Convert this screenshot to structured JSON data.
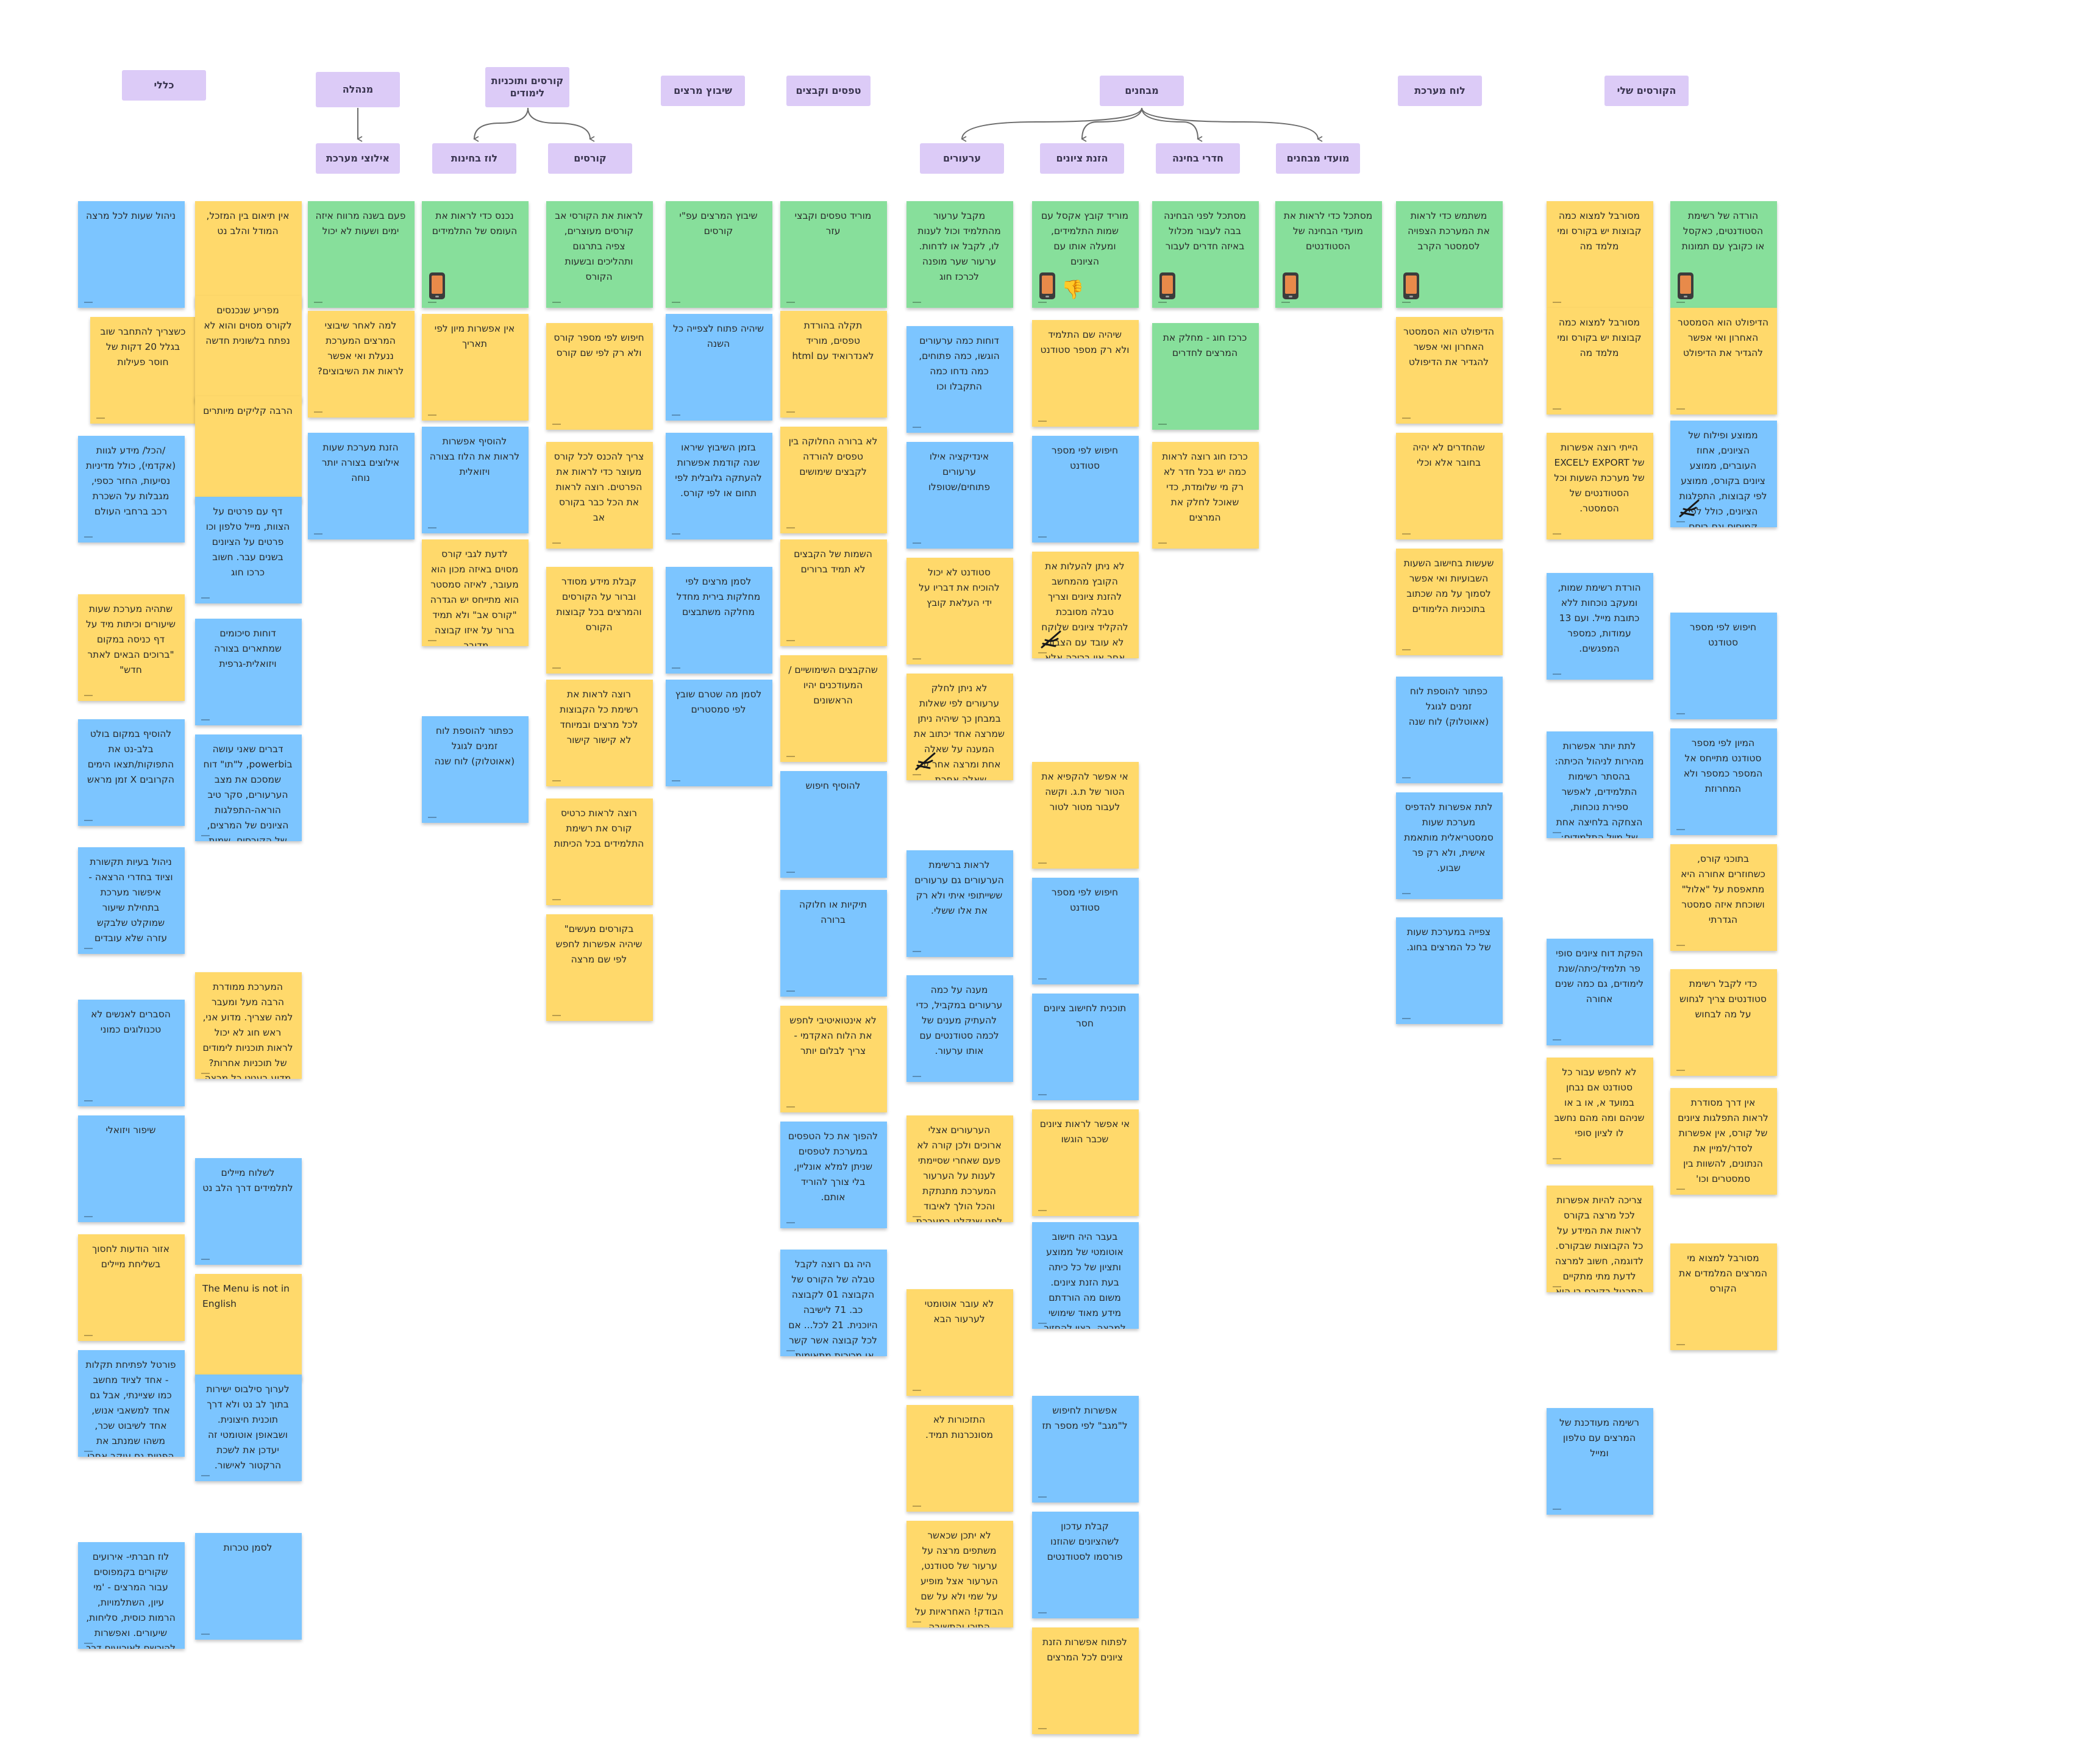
{
  "colors": {
    "header": "#dccbf7",
    "yellow": "#ffd96b",
    "blue": "#7cc5ff",
    "green": "#87df9b",
    "connector": "#6b6b6b"
  },
  "icons": {
    "phone": "phone-mockup-icon",
    "thumbsdown": "thumbs-down-icon",
    "pen": "pen-scribble-icon"
  },
  "headers": [
    {
      "id": "h_general",
      "text": "כללי"
    },
    {
      "id": "h_admin",
      "text": "מנהלה"
    },
    {
      "id": "h_admin_sub",
      "text": "אילוצי מערכת"
    },
    {
      "id": "h_courses_prog",
      "text": "קורסים ותוכניות לימודים"
    },
    {
      "id": "h_exams_sched",
      "text": "לוז בחינות"
    },
    {
      "id": "h_courses",
      "text": "קורסים"
    },
    {
      "id": "h_staff",
      "text": "שיבוץ מרצים"
    },
    {
      "id": "h_forms",
      "text": "טפסים וקבצים"
    },
    {
      "id": "h_exams",
      "text": "מבחנים"
    },
    {
      "id": "h_appeals",
      "text": "ערעורים"
    },
    {
      "id": "h_grades",
      "text": "הזנת ציונים"
    },
    {
      "id": "h_rooms",
      "text": "חדרי בחינה"
    },
    {
      "id": "h_dates",
      "text": "מועדי מבחנים"
    },
    {
      "id": "h_board",
      "text": "לוח מערכת"
    },
    {
      "id": "h_mycourses",
      "text": "הקורסים שלי"
    }
  ],
  "notes": [
    {
      "text": "ניהול שעות לכל מרצה",
      "color": "blue"
    },
    {
      "text": "כשצריך להתחבר שוב בגלל 20 דקות של חוסר פעילות",
      "color": "yellow"
    },
    {
      "text": "/הכל/ מידע לגוות (אקדמי), כולל מדיניות נסיעות, החזר כספי, מגבלות על השכרת רכב ברחבי העולם",
      "color": "blue"
    },
    {
      "text": "שתהיה מערכת שעות שיעורים וכיתות מיד על דף כניסה במקום \"ברוכים הבאים לאתר חדש\"",
      "color": "yellow"
    },
    {
      "text": "להוסיף במקום בולט בלב-נט את התפוקות/תצאו הימים הקרובים X זמן מראש",
      "color": "blue"
    },
    {
      "text": "ניהול בעיות תקשורת וציוד בחדרי הרצאה -איפשור מערכת בתחילת שיעור שמוקלט שלבקש עזרה שלא עובדים",
      "color": "blue"
    },
    {
      "text": "הסברים לאנשים לא טכנולוגים כמוני",
      "color": "blue"
    },
    {
      "text": "שיפור ויזואלי",
      "color": "blue"
    },
    {
      "text": "אזור הודעות לחסוך בשליחת מיילים",
      "color": "yellow"
    },
    {
      "text": "פורטל לפתיחת תקלות - אחד לציוד מחשב כמו שציינתי, אבל גם אחד למשאבי אנוש, אחד לשיבוט שכר, משהו שמנתב את הפניות גם עוקב אחרי ביצוע",
      "color": "blue"
    },
    {
      "text": "לוז חברתי- אירועים שקורים בקמפוסים עבור המרצים - 'מי עיון, השתלמויות, הרמות כוסית, סליחות, שיעורים. ואפשרות להירשם לאירועים דרך המערכת.",
      "color": "blue"
    },
    {
      "text": "אין תיאום בין המזכל, המודל והלב נט",
      "color": "yellow"
    },
    {
      "text": "מפריע שנכנסים לקורס מסוים והוא לא נפתח בלשונית חדשה",
      "color": "yellow"
    },
    {
      "text": "הרבה קליקים מיותרים",
      "color": "yellow"
    },
    {
      "text": "דף עם פרטים על הצוות, מייל טלפון וכו פרטים על הציונים בשנים עבר. חשוב כרכו חוג",
      "color": "blue"
    },
    {
      "text": "דוחות סיכומים שמתארים בצורה ויזואלית-גרפית",
      "color": "blue"
    },
    {
      "text": "דברים שאני עושה בpowerbi, ל\"תו\" דוח שמסכם את מצב הערעורים, סקר טיב הוראה-התפלגות הציונים של המרצים, של הקורסים, שמות הוראה וכו. חשוב לרכזי חוגים. לשקול האם להכניס את זה לכאן",
      "color": "blue"
    },
    {
      "text": "המערכת ממודרת הרבה מעל ומעבר למה שצריך. מדוע אני, ראש חוג לא יכול לראות תוכניות לימודים של תוכניות אחרות? מדוע בעניט כל מרצה לא יכול לראות את זה? למה אי אפשר לראות את מערכת השעות של הסטודנטים בכל חוג ובכל שנה?",
      "color": "yellow"
    },
    {
      "text": "לשלוח מיילים לתלמידים דרך הלב נט",
      "color": "blue"
    },
    {
      "text": "The Menu is not in English",
      "color": "yellow",
      "ltr": true
    },
    {
      "text": "לערוך סילבוס ישירות בתוך לב נט ולא דרך תוכנית חיצונית. ושבאופן אוטומטי זה יעדכן את לשכת הרקטור לאישור.",
      "color": "blue"
    },
    {
      "text": "לסמן טכרות",
      "color": "blue"
    },
    {
      "text": "פעם בשנה מרווח איזה ימים ושעות לא יכול",
      "color": "green"
    },
    {
      "text": "למה לאחר שיבוצי המרצים המערכת ננעלת ואי אפשר לראות את השיבוצים?",
      "color": "yellow"
    },
    {
      "text": "הזנת מערכת שעות אילוצים בצורה יותר נוחה",
      "color": "blue"
    },
    {
      "text": "נכנס כדי לראות את העומס של התלמידים",
      "color": "green",
      "phone": true
    },
    {
      "text": "אין אפשרות מיון לפי תאריך",
      "color": "yellow"
    },
    {
      "text": "להוסיף אפשרות לראות את הלוז בצורה ויזואלית",
      "color": "blue"
    },
    {
      "text": "לדעת לגבי קורס מסוים באיזה מכון הוא מעובר, לאיזה סמסטר הוא מתייחס יש הגדרה \"קורס אב\" ולא תמיד ברור על איזו קבוצה מדובר.",
      "color": "yellow"
    },
    {
      "text": "כפתור להוספת לוח זמנים לגוגל (אאוטלוק) לוח שנה",
      "color": "blue"
    },
    {
      "text": "לראות את הקורסי אב קורסים מעוצרים, צפיה בתרגום ותהליכים ובשעות הקורס",
      "color": "green"
    },
    {
      "text": "חיפוש לפי מספר קורס ולא רק לפי שם קורס",
      "color": "yellow"
    },
    {
      "text": "צריך להכנס לכל קורס מעוצר כדי לראות את הפרטים. רוצה לראות את הכל כבר בקורס אב",
      "color": "yellow"
    },
    {
      "text": "קבלת מידע מסודר וברור על הקורסים והמרצים בכל קבוצות הקורס",
      "color": "yellow"
    },
    {
      "text": "רוצה לראות את רשימת כל הקבוצות לכל מרצים ובמיוחד לא קישור קישור",
      "color": "yellow"
    },
    {
      "text": "רוצה לראות כרטיס קורס את רשימת התלמידים בכל הכיתות",
      "color": "yellow"
    },
    {
      "text": "בקורסים מעשים\" שיהיה אפשרות לחפש לפי שם מרצה",
      "color": "yellow"
    },
    {
      "text": "שיבוץ המרצים עפ\"י קורסים",
      "color": "green"
    },
    {
      "text": "שיהיה פתוח לצפייה כל השנה",
      "color": "blue"
    },
    {
      "text": "בזמן השיבוץ שיראו שנה קודמת אפשרות להעתקה גלובלית לפי תחום או לפי קורס.",
      "color": "blue"
    },
    {
      "text": "לסמן מרצים לפי מחלקות בירית מחדל מחלקה משתבצים",
      "color": "blue"
    },
    {
      "text": "לסמן מה שטרם שובץ לפי סמסטרים",
      "color": "blue"
    },
    {
      "text": "מוריד טפסים וקבצי עזר",
      "color": "green"
    },
    {
      "text": "תקלה בהורדת טפסים, מוריד לאנדרואיד עם html",
      "color": "yellow"
    },
    {
      "text": "לא ברורה החלוקה בין טפסים להורדה לקבצים שימושים",
      "color": "yellow"
    },
    {
      "text": "השמות של הקבצים לא תמיד ברורים",
      "color": "yellow"
    },
    {
      "text": "שהקבצים השימושיים / המעודכנים יהיו הראשונים",
      "color": "yellow"
    },
    {
      "text": "להוסיף חיפוש",
      "color": "blue"
    },
    {
      "text": "תיקיות או חלוקה ברורה",
      "color": "blue"
    },
    {
      "text": "לא אינטואיטיבי לחפש את הלוח האקדמי - צריך לבלום יותר",
      "color": "yellow"
    },
    {
      "text": "להפוך את כל הטפסים במערכת לטפסים שניתן למלא אונליין, בלי צורך להוריד אותם.",
      "color": "blue"
    },
    {
      "text": "היה גם רוצה לקבל טבלה של הקורס של הקבוצה 01 לקבוצה כב. 71 לישיבה היוכנית. 21 לכל... אם לכל קבוצה אשר קשר או מכירות מתאימות.",
      "color": "blue"
    },
    {
      "text": "מקבל ערעור מהתלמיד וכול לענות לו, לקבל או לדחות. ערעור שער מופנה לכרכז חוג",
      "color": "green"
    },
    {
      "text": "דוחות כמה ערעורים הוגשו, כמה פתוחים, כמה נדחו כמה התקבלו וכו",
      "color": "blue"
    },
    {
      "text": "אינדיקציה אילו ערעורים פתוחים/שטופלו",
      "color": "blue"
    },
    {
      "text": "סטודנט לא יכול להוכיח את דבריו על ידי העלאת קובץ",
      "color": "yellow"
    },
    {
      "text": "לא ניתן לחלק ערעורים לפי שאלות במבחן כך שיהיה ניתן שמרצה אחד יכתוב את המענה על שאלה אחת ומרצה אחר על שאלה אחרת.",
      "color": "yellow",
      "pen": true
    },
    {
      "text": "לראות ברשימת הערעורים גם ערעורים ששייתופי איתי ולא רק את אלו ששלי.",
      "color": "blue"
    },
    {
      "text": "מענה על כמה ערעורים במקביל, כדי להעתיק מענים של לכמה סטודנטים עם אותו ערעור.",
      "color": "blue"
    },
    {
      "text": "הערעורים אצלי ארוכים ולכן קורה לא פעם שאחרי שסיימתי לענות על הערעור המערכת מתנתקת והכל הולך לאיבוד לפני שנקלט במערכת",
      "color": "yellow"
    },
    {
      "text": "לא עובר אוטומטי לערעור הבא",
      "color": "yellow"
    },
    {
      "text": "התזכורות לא מסונכרנות תמיד.",
      "color": "yellow"
    },
    {
      "text": "לא יתכן שכאשר משתפים מרצה על ערעור של סטודנט, הערעור אצל מופיע על שמי ולא על שם הבודק! האחראיות על התוכן והתשובה לערעור צריכה להיות עליו ולא עליי!",
      "color": "yellow"
    },
    {
      "text": "מוריד קובץ אקסל עם שמות התלמידים, ומעלה אותו עם הציונים",
      "color": "green",
      "phone": true,
      "thumb": true
    },
    {
      "text": "שיהיה שם התלמיד ולא רק מספר סטודנט",
      "color": "yellow"
    },
    {
      "text": "חיפוש לפי מספר סטודנט",
      "color": "blue"
    },
    {
      "text": "לא ניתן להעלות את הקובץ מהמחשב להזנת ציונים וצריך טבלה מסובכת להקליד ציונים שלוקח לא עובד עם הצבות אחר אין ברירה אלא להזין ידנית 80/90 ציונים לא מה שגורר טעויות",
      "color": "yellow",
      "pen": true
    },
    {
      "text": "אי אפשר להקפיא את הטור של ת.ג. וקשה לעבור מטור לטור",
      "color": "yellow"
    },
    {
      "text": "חיפוש לפי מספר סטודנט",
      "color": "blue"
    },
    {
      "text": "תוכנית לחישוב ציונים חסר",
      "color": "blue"
    },
    {
      "text": "אי אפשר לראות ציונים שכבר הוגשו",
      "color": "yellow"
    },
    {
      "text": "בעבר היה חישוב אוטומטי של ממוצע ותציון של כל כיתה בעת הזנת ציונים. משום מה הורדתם מידע מאוד שימושי למרצה. רצוי להחזיר זאת.",
      "color": "blue"
    },
    {
      "text": "אפשרות לחיפוש ל\"מגב\" לפי מספר תז",
      "color": "blue"
    },
    {
      "text": "קבלת עדכון לשהציונים שהוזנו פורסמו לסטודנטים",
      "color": "blue"
    },
    {
      "text": "לפתוח אפשרות הזנת ציונים לכל המרצים",
      "color": "yellow"
    },
    {
      "text": "מסתכל לפני הבחינה בבה לעבור מכלול באיזה חדרים לעבור",
      "color": "green",
      "phone": true
    },
    {
      "text": "כרכז חוג - מחלק את המרצים לחדרים",
      "color": "green"
    },
    {
      "text": "כרכז חוג רוצה לראות כמה יש בכל חדר לא רק מי שלומדת, כדי שאוכל לחלק את המרצים",
      "color": "yellow"
    },
    {
      "text": "מסתכל כדי לראות את מועדי הבחינה של הסטודנטים",
      "color": "green",
      "phone": true
    },
    {
      "text": "משתמש כדי לראות את המערכת הצפויה לסמסטר הקרב",
      "color": "green",
      "phone": true
    },
    {
      "text": "הדיפולט הוא הסמסטר האחרון ואי אפשר להגדיר את הדיפולט",
      "color": "yellow"
    },
    {
      "text": "שהחדרים לא יהיה בחובר אלא וכלי",
      "color": "yellow"
    },
    {
      "text": "שעשות בחישוב השעות השבועיות ואי אפשר לסמוך על מה שכתוב בתוכניות הלימודים",
      "color": "yellow"
    },
    {
      "text": "כפתור להוספת לוח זמנים לגוגל (אאוטלוק) לוח שנה",
      "color": "blue"
    },
    {
      "text": "לתת אפשרות להדפיס מערכת שעות סמסטריאלית מותאמת אישית, ולא רק פר שבוע.",
      "color": "blue"
    },
    {
      "text": "צפייה במערכת שעות של כל המרצים בחוג.",
      "color": "blue"
    },
    {
      "text": "מסורבל למצוא כמה קבוצות יש בקורס ומי מלמד מה",
      "color": "yellow"
    },
    {
      "text": "מסורבל למצוא כמה קבוצות יש בקורס ומי מלמד מה",
      "color": "yellow"
    },
    {
      "text": "הייתי רוצה אפשרות של EXPORT לEXCEL של מערכת השעות וכל הסטודנטים של הסמסטר.",
      "color": "yellow"
    },
    {
      "text": "הורדת רשימת שמות, ומעקב נוכחות ללא כתובת מייל. ועם 13 עמודות, כמספר המפגשים.",
      "color": "blue"
    },
    {
      "text": "לתת יותר אפשרות מהירות לניהול הכיתה: בהסתר רשימות התלמידים, לאפשר ספירת נוכחות, הצחקה בלחיצה אחת של מייל התלמידים; להוסיף קישור ישיר לזום",
      "color": "blue"
    },
    {
      "text": "הפקת דוח ציונים סופי פר תלמיד/כיתה/שנת לימודים, גם כמה שנים אחורה",
      "color": "blue"
    },
    {
      "text": "לא לחפש עבור כל סטודנט אם נבחן במועד א, או ב או שניהם ומה מהם נחשב לו לציון סופי",
      "color": "yellow"
    },
    {
      "text": "צריכה להיות אפשרות לכל מרצה בקורס לראות את המידע על כל הקבוצות שבקורס. לדוגמה, חשוב למרצה לדעת מתי מתקיים התרגול בקורס בו הוא מעביר את ההרצאה.",
      "color": "yellow"
    },
    {
      "text": "רשימה מעודכנת של המרצים עם טלפון ומייל",
      "color": "blue"
    },
    {
      "text": "הורדה של רשימת הסטודנטים, כאקסל או כקובץ עם תמונות",
      "color": "green",
      "phone": true
    },
    {
      "text": "הדיפולט הוא הסמסטר האחרון ואי אפשר להגדיר את הדיפולט",
      "color": "yellow"
    },
    {
      "text": "ממוצע ופילוח של הציונים, אחוז העוברים, ממוצע ציונים בקורס, ממוצע לפי קבוצות, התפלגות הציונים, כולל לפי קמוסים וגם ביחס לשנים קודמות",
      "color": "blue",
      "pen": true
    },
    {
      "text": "חיפוש לפי מספר סטודנט",
      "color": "blue"
    },
    {
      "text": "המיון לפי מספר סטודנט מתייחס אל המספר כמספר ולא המחרוזת",
      "color": "blue"
    },
    {
      "text": "בתוכני קורס, כשחוזרים אחורה היא מתאפסת על \"אלול\" ושוכחת איזה סמסטר הגדרתי",
      "color": "yellow"
    },
    {
      "text": "כדי לקבל רשימת סטודנטים צריך לגחוש על מה לבחוש",
      "color": "yellow"
    },
    {
      "text": "אין דרך מסודרת לראות התפלגות ציונים של קורס, אין אפשרות לסדר/למיין את הנתונים, להשוות בין סמסטרים וכו'",
      "color": "yellow"
    },
    {
      "text": "מסורבל למצוא מי המרצים המלמדים את הקורס",
      "color": "yellow"
    }
  ]
}
